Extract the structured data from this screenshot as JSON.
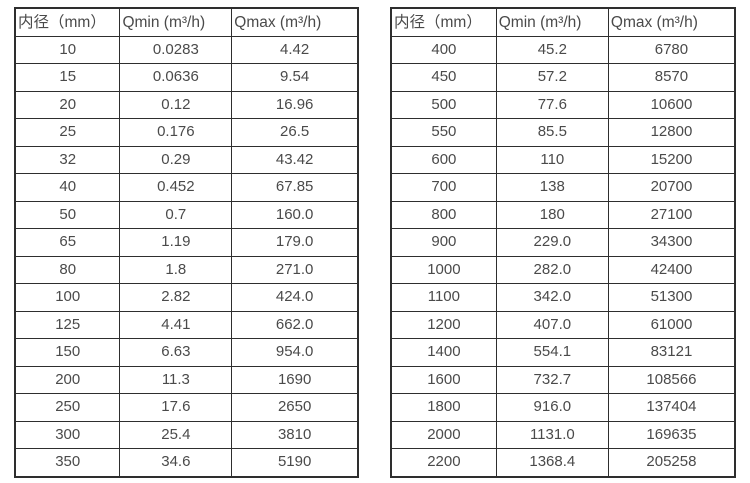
{
  "page": {
    "background_color": "#ffffff",
    "text_color": "#4a4a4a",
    "border_color": "#2e2e2e"
  },
  "tables": [
    {
      "name": "flow-rate-table-small-diameters",
      "headers": [
        "内径（mm）",
        "Qmin (m³/h)",
        "Qmax (m³/h)"
      ],
      "rows": [
        [
          "10",
          "0.0283",
          "4.42"
        ],
        [
          "15",
          "0.0636",
          "9.54"
        ],
        [
          "20",
          "0.12",
          "16.96"
        ],
        [
          "25",
          "0.176",
          "26.5"
        ],
        [
          "32",
          "0.29",
          "43.42"
        ],
        [
          "40",
          "0.452",
          "67.85"
        ],
        [
          "50",
          "0.7",
          "160.0"
        ],
        [
          "65",
          "1.19",
          "179.0"
        ],
        [
          "80",
          "1.8",
          "271.0"
        ],
        [
          "100",
          "2.82",
          "424.0"
        ],
        [
          "125",
          "4.41",
          "662.0"
        ],
        [
          "150",
          "6.63",
          "954.0"
        ],
        [
          "200",
          "11.3",
          "1690"
        ],
        [
          "250",
          "17.6",
          "2650"
        ],
        [
          "300",
          "25.4",
          "3810"
        ],
        [
          "350",
          "34.6",
          "5190"
        ]
      ]
    },
    {
      "name": "flow-rate-table-large-diameters",
      "headers": [
        "内径（mm）",
        "Qmin (m³/h)",
        "Qmax (m³/h)"
      ],
      "rows": [
        [
          "400",
          "45.2",
          "6780"
        ],
        [
          "450",
          "57.2",
          "8570"
        ],
        [
          "500",
          "77.6",
          "10600"
        ],
        [
          "550",
          "85.5",
          "12800"
        ],
        [
          "600",
          "110",
          "15200"
        ],
        [
          "700",
          "138",
          "20700"
        ],
        [
          "800",
          "180",
          "27100"
        ],
        [
          "900",
          "229.0",
          "34300"
        ],
        [
          "1000",
          "282.0",
          "42400"
        ],
        [
          "1100",
          "342.0",
          "51300"
        ],
        [
          "1200",
          "407.0",
          "61000"
        ],
        [
          "1400",
          "554.1",
          "83121"
        ],
        [
          "1600",
          "732.7",
          "108566"
        ],
        [
          "1800",
          "916.0",
          "137404"
        ],
        [
          "2000",
          "1131.0",
          "169635"
        ],
        [
          "2200",
          "1368.4",
          "205258"
        ]
      ]
    }
  ]
}
